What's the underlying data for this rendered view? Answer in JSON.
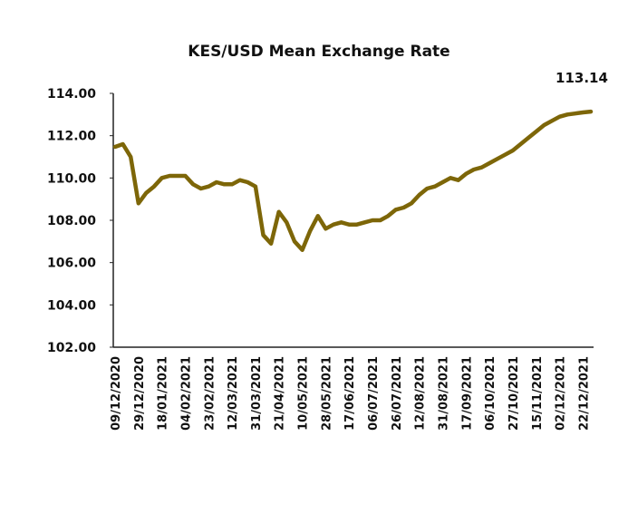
{
  "chart_data": {
    "type": "line",
    "title": "KES/USD Mean Exchange Rate",
    "categories": [
      "09/12/2020",
      null,
      null,
      "29/12/2020",
      null,
      null,
      "18/01/2021",
      null,
      null,
      "04/02/2021",
      null,
      null,
      "23/02/2021",
      null,
      null,
      "12/03/2021",
      null,
      null,
      "31/03/2021",
      null,
      null,
      "21/04/2021",
      null,
      null,
      "10/05/2021",
      null,
      null,
      "28/05/2021",
      null,
      null,
      "17/06/2021",
      null,
      null,
      "06/07/2021",
      null,
      null,
      "26/07/2021",
      null,
      null,
      "12/08/2021",
      null,
      null,
      "31/08/2021",
      null,
      null,
      "17/09/2021",
      null,
      null,
      "06/10/2021",
      null,
      null,
      "27/10/2021",
      null,
      null,
      "15/11/2021",
      null,
      null,
      "02/12/2021",
      null,
      null,
      "22/12/2021",
      null
    ],
    "series": [
      {
        "name": "KES/USD",
        "color": "#7d6608",
        "values": [
          111.47,
          111.6,
          111.0,
          108.8,
          109.3,
          109.6,
          110.0,
          110.1,
          110.1,
          110.1,
          109.7,
          109.5,
          109.6,
          109.8,
          109.7,
          109.7,
          109.9,
          109.8,
          109.6,
          107.3,
          106.9,
          108.4,
          107.9,
          107.0,
          106.6,
          107.5,
          108.2,
          107.6,
          107.8,
          107.9,
          107.8,
          107.8,
          107.9,
          108.0,
          108.0,
          108.2,
          108.5,
          108.6,
          108.8,
          109.2,
          109.5,
          109.6,
          109.8,
          110.0,
          109.9,
          110.2,
          110.4,
          110.5,
          110.7,
          110.9,
          111.1,
          111.3,
          111.6,
          111.9,
          112.2,
          112.5,
          112.7,
          112.9,
          113.0,
          113.05,
          113.1,
          113.14
        ],
        "value_labels": [
          null,
          null,
          null,
          null,
          null,
          null,
          null,
          null,
          null,
          null,
          null,
          null,
          null,
          null,
          null,
          null,
          null,
          null,
          null,
          null,
          null,
          null,
          null,
          null,
          null,
          null,
          null,
          null,
          null,
          null,
          null,
          null,
          null,
          null,
          null,
          null,
          null,
          null,
          null,
          null,
          null,
          null,
          null,
          null,
          null,
          null,
          null,
          null,
          null,
          null,
          null,
          null,
          null,
          null,
          null,
          null,
          null,
          null,
          null,
          null,
          null,
          "113.14"
        ]
      }
    ],
    "ylim": [
      102,
      114
    ],
    "yticks": [
      {
        "value": 102,
        "label": "102.00"
      },
      {
        "value": 104,
        "label": "104.00"
      },
      {
        "value": 106,
        "label": "106.00"
      },
      {
        "value": 108,
        "label": "108.00"
      },
      {
        "value": 110,
        "label": "110.00"
      },
      {
        "value": 112,
        "label": "112.00"
      },
      {
        "value": 114,
        "label": "114.00"
      }
    ],
    "grid": false
  }
}
